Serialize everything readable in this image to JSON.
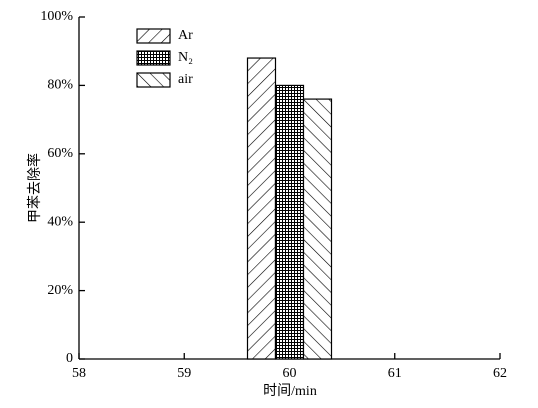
{
  "chart_data": {
    "type": "bar",
    "x_label": "时间/min",
    "y_label": "甲苯去除率",
    "x": [
      60
    ],
    "series": [
      {
        "name": "Ar",
        "color": "#000000",
        "hatch": "forward",
        "values": [
          88
        ]
      },
      {
        "name": "N₂",
        "color": "#000000",
        "hatch": "grid",
        "values": [
          80
        ]
      },
      {
        "name": "air",
        "color": "#000000",
        "hatch": "backward",
        "values": [
          76
        ]
      }
    ],
    "xlim": [
      58,
      62
    ],
    "xticks": [
      58,
      59,
      60,
      61,
      62
    ],
    "ylim": [
      0,
      100
    ],
    "yticks": [
      0,
      {
        "value": 20,
        "label": "20%"
      },
      {
        "value": 40,
        "label": "40%"
      },
      {
        "value": 60,
        "label": "60%"
      },
      {
        "value": 80,
        "label": "80%"
      },
      {
        "value": 100,
        "label": "100%"
      }
    ],
    "legend": "upper-left"
  }
}
